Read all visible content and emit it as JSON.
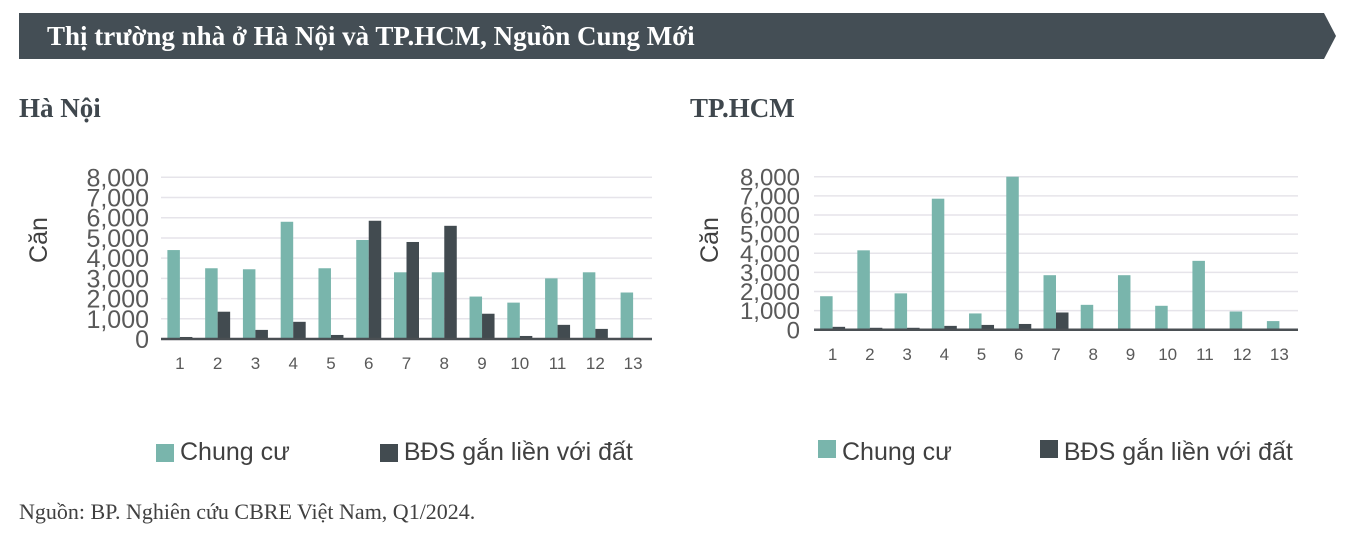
{
  "banner": {
    "title": "Thị trường nhà ở Hà Nội và TP.HCM, Nguồn Cung Mới",
    "color": "#444e55"
  },
  "colors": {
    "chung_cu": "#79b5ac",
    "bds": "#424b50",
    "grid": "#e6e4ea",
    "axis": "#4a4f53"
  },
  "legend": {
    "chung_cu": "Chung cư",
    "bds": "BĐS gắn liền với đất"
  },
  "footer": {
    "source": "Nguồn: BP. Nghiên cứu CBRE Việt Nam, Q1/2024."
  },
  "panels": {
    "hanoi": {
      "title": "Hà Nội"
    },
    "hcmc": {
      "title": "TP.HCM"
    }
  },
  "chart_data": [
    {
      "type": "bar",
      "title": "Hà Nội",
      "xlabel": "",
      "ylabel": "Căn",
      "ylim": [
        0,
        8000
      ],
      "yticks": [
        "0",
        "1,000",
        "2,000",
        "3,000",
        "4,000",
        "5,000",
        "6,000",
        "7,000",
        "8,000"
      ],
      "grid": true,
      "legend_position": "bottom",
      "categories": [
        "1",
        "2",
        "3",
        "4",
        "5",
        "6",
        "7",
        "8",
        "9",
        "10",
        "11",
        "12",
        "13"
      ],
      "series": [
        {
          "name": "Chung cư",
          "values": [
            4400,
            3500,
            3450,
            5800,
            3500,
            4900,
            3300,
            3300,
            2100,
            1800,
            3000,
            3300,
            2300
          ]
        },
        {
          "name": "BĐS gắn liền với đất",
          "values": [
            100,
            1350,
            450,
            850,
            200,
            5850,
            4800,
            5600,
            1250,
            150,
            700,
            500,
            0
          ]
        }
      ]
    },
    {
      "type": "bar",
      "title": "TP.HCM",
      "xlabel": "",
      "ylabel": "Căn",
      "ylim": [
        0,
        8000
      ],
      "yticks": [
        "0",
        "1,000",
        "2,000",
        "3,000",
        "4,000",
        "5,000",
        "6,000",
        "7,000",
        "8,000"
      ],
      "grid": true,
      "legend_position": "bottom",
      "categories": [
        "1",
        "2",
        "3",
        "4",
        "5",
        "6",
        "7",
        "8",
        "9",
        "10",
        "11",
        "12",
        "13"
      ],
      "series": [
        {
          "name": "Chung cư",
          "values": [
            1750,
            4150,
            1900,
            6850,
            850,
            8000,
            2850,
            1300,
            2850,
            1250,
            3600,
            950,
            450
          ]
        },
        {
          "name": "BĐS gắn liền với đất",
          "values": [
            150,
            100,
            100,
            200,
            250,
            300,
            900,
            50,
            0,
            0,
            0,
            0,
            0
          ]
        }
      ]
    }
  ]
}
